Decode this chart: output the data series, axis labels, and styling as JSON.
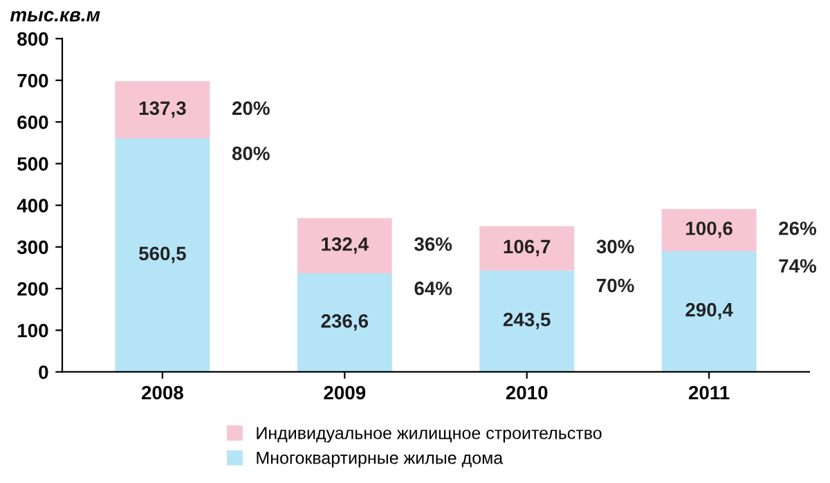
{
  "chart_data": {
    "type": "bar",
    "stacked": true,
    "ylabel": "тыс.кв.м",
    "categories": [
      "2008",
      "2009",
      "2010",
      "2011"
    ],
    "series": [
      {
        "name": "Многоквартирные жилые дома",
        "color": "#b5e4f7",
        "values": [
          560.5,
          236.6,
          243.5,
          290.4
        ],
        "value_labels": [
          "560,5",
          "236,6",
          "243,5",
          "290,4"
        ]
      },
      {
        "name": "Индивидуальное жилищное строительство",
        "color": "#f7c6d3",
        "values": [
          137.3,
          132.4,
          106.7,
          100.6
        ],
        "value_labels": [
          "137,3",
          "132,4",
          "106,7",
          "100,6"
        ]
      }
    ],
    "annotations": [
      "20%",
      "80%",
      "36%",
      "64%",
      "30%",
      "70%",
      "26%",
      "74%"
    ],
    "ylim": [
      0,
      800
    ],
    "yticks": [
      0,
      100,
      200,
      300,
      400,
      500,
      600,
      700,
      800
    ],
    "grid": false,
    "legend": "bottom"
  }
}
